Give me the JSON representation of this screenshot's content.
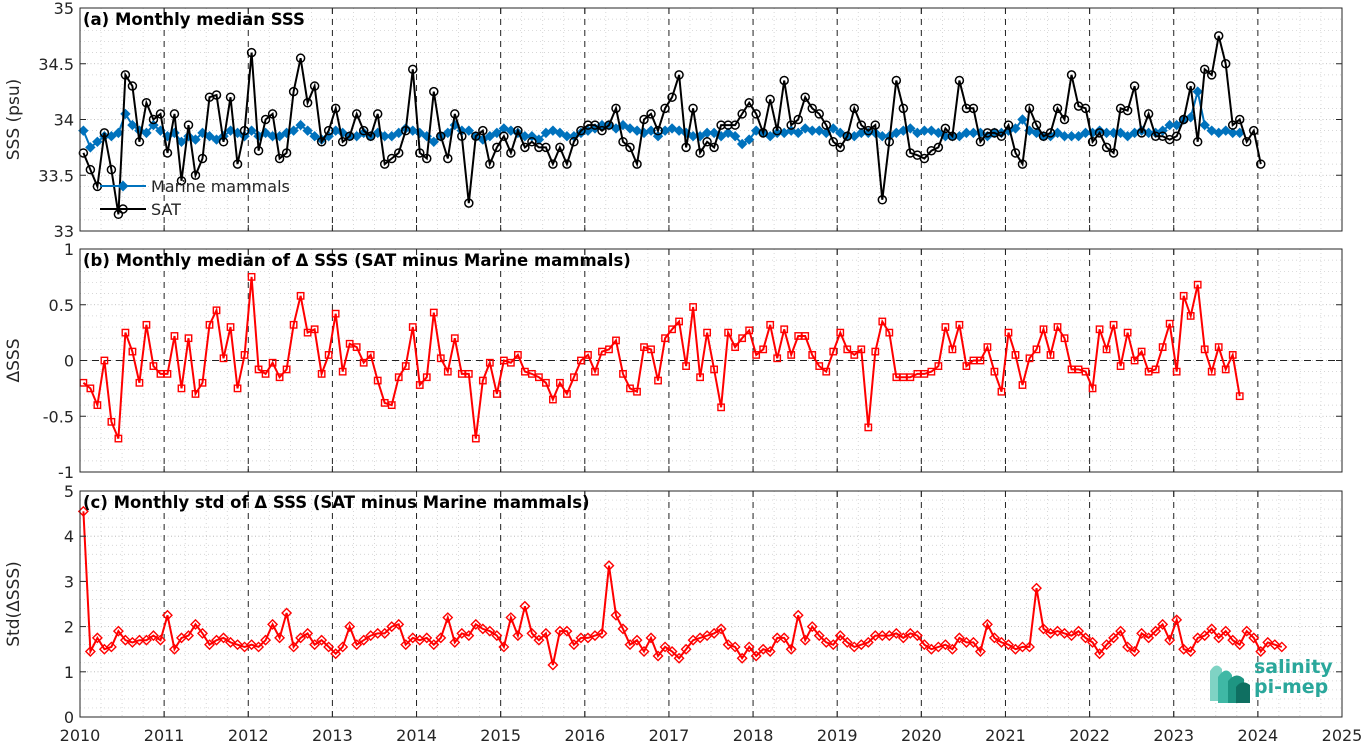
{
  "logo": {
    "line1": "salinity",
    "line2": "pi-mep"
  },
  "x_ticks": [
    "2010",
    "2011",
    "2012",
    "2013",
    "2014",
    "2015",
    "2016",
    "2017",
    "2018",
    "2019",
    "2020",
    "2021",
    "2022",
    "2023",
    "2024",
    "2025"
  ],
  "colors": {
    "marine": "#0072bd",
    "sat": "#000000",
    "delta": "#ff0000",
    "grid": "#bdbdbd"
  },
  "chart_data": [
    {
      "type": "line",
      "title": "(a) Monthly median SSS",
      "ylabel": "SSS (psu)",
      "ylim": [
        33,
        35
      ],
      "yticks": [
        "33",
        "33.5",
        "34",
        "34.5",
        "35"
      ],
      "xlim": [
        2010,
        2025
      ],
      "grid": true,
      "legend_position": "lower-left",
      "series": [
        {
          "name": "Marine mammals",
          "marker": "diamond",
          "x_start": 2010.04,
          "x_step": 0.0833,
          "values": [
            33.9,
            33.75,
            33.8,
            33.85,
            33.85,
            33.88,
            34.05,
            33.95,
            33.9,
            33.88,
            33.95,
            33.9,
            33.85,
            33.88,
            33.8,
            33.85,
            33.82,
            33.88,
            33.85,
            33.82,
            33.85,
            33.9,
            33.88,
            33.85,
            33.9,
            33.85,
            33.88,
            33.85,
            33.85,
            33.88,
            33.9,
            33.95,
            33.9,
            33.85,
            33.82,
            33.85,
            33.9,
            33.88,
            33.85,
            33.85,
            33.88,
            33.85,
            33.88,
            33.85,
            33.85,
            33.88,
            33.92,
            33.9,
            33.88,
            33.85,
            33.8,
            33.85,
            33.88,
            33.95,
            33.9,
            33.9,
            33.85,
            33.82,
            33.85,
            33.88,
            33.92,
            33.9,
            33.88,
            33.85,
            33.85,
            33.82,
            33.88,
            33.9,
            33.88,
            33.85,
            33.85,
            33.88,
            33.9,
            33.92,
            33.95,
            33.95,
            33.92,
            33.95,
            33.92,
            33.9,
            33.88,
            33.9,
            33.85,
            33.9,
            33.92,
            33.9,
            33.88,
            33.85,
            33.85,
            33.88,
            33.88,
            33.85,
            33.88,
            33.85,
            33.78,
            33.82,
            33.9,
            33.88,
            33.85,
            33.88,
            33.88,
            33.9,
            33.88,
            33.92,
            33.9,
            33.9,
            33.88,
            33.92,
            33.88,
            33.85,
            33.85,
            33.88,
            33.88,
            33.88,
            33.85,
            33.85,
            33.88,
            33.9,
            33.92,
            33.88,
            33.9,
            33.9,
            33.88,
            33.85,
            33.85,
            33.85,
            33.88,
            33.88,
            33.88,
            33.85,
            33.88,
            33.88,
            33.9,
            33.92,
            34.0,
            33.9,
            33.88,
            33.85,
            33.85,
            33.88,
            33.85,
            33.85,
            33.85,
            33.88,
            33.88,
            33.9,
            33.88,
            33.88,
            33.88,
            33.85,
            33.88,
            33.9,
            33.88,
            33.88,
            33.9,
            33.95,
            33.95,
            34.0,
            34.02,
            34.25,
            33.95,
            33.9,
            33.88,
            33.9,
            33.88,
            33.88
          ],
          "color": "#0072bd"
        },
        {
          "name": "SAT",
          "marker": "circle",
          "x_start": 2010.04,
          "x_step": 0.0833,
          "values": [
            33.7,
            33.55,
            33.4,
            33.88,
            33.55,
            33.15,
            34.4,
            34.3,
            33.8,
            34.15,
            34.0,
            34.05,
            33.7,
            34.05,
            33.45,
            33.95,
            33.5,
            33.65,
            34.2,
            34.22,
            33.8,
            34.2,
            33.6,
            33.9,
            34.6,
            33.72,
            34.0,
            34.05,
            33.65,
            33.7,
            34.25,
            34.55,
            34.15,
            34.3,
            33.8,
            33.9,
            34.1,
            33.8,
            33.85,
            34.05,
            33.9,
            33.85,
            34.05,
            33.6,
            33.65,
            33.7,
            33.9,
            34.45,
            33.7,
            33.65,
            34.25,
            33.85,
            33.65,
            34.05,
            33.85,
            33.25,
            33.85,
            33.9,
            33.6,
            33.75,
            33.85,
            33.7,
            33.9,
            33.75,
            33.8,
            33.75,
            33.75,
            33.6,
            33.75,
            33.6,
            33.8,
            33.9,
            33.95,
            33.95,
            33.9,
            33.95,
            34.1,
            33.8,
            33.75,
            33.6,
            34.0,
            34.05,
            33.9,
            34.1,
            34.2,
            34.4,
            33.75,
            34.1,
            33.7,
            33.8,
            33.75,
            33.95,
            33.95,
            33.95,
            34.05,
            34.15,
            34.05,
            33.88,
            34.18,
            33.9,
            34.35,
            33.95,
            34.0,
            34.2,
            34.1,
            34.05,
            33.95,
            33.8,
            33.75,
            33.85,
            34.1,
            33.95,
            33.9,
            33.95,
            33.28,
            33.8,
            34.35,
            34.1,
            33.7,
            33.68,
            33.65,
            33.72,
            33.75,
            33.92,
            33.85,
            34.35,
            34.1,
            34.1,
            33.8,
            33.88,
            33.88,
            33.85,
            33.95,
            33.7,
            33.6,
            34.1,
            33.95,
            33.85,
            33.88,
            34.1,
            34.0,
            34.4,
            34.12,
            34.1,
            33.8,
            33.88,
            33.75,
            33.7,
            34.1,
            34.08,
            34.3,
            33.88,
            34.05,
            33.85,
            33.85,
            33.82,
            33.85,
            34.0,
            34.3,
            33.8,
            34.45,
            34.4,
            34.75,
            34.5,
            33.95,
            34.0,
            33.8,
            33.9,
            33.6
          ],
          "color": "#000000"
        }
      ]
    },
    {
      "type": "line",
      "title": "(b) Monthly median of Δ SSS (SAT minus Marine mammals)",
      "ylabel": "ΔSSS",
      "ylim": [
        -1,
        1
      ],
      "yticks": [
        "-1",
        "-0.5",
        "0",
        "0.5",
        "1"
      ],
      "xlim": [
        2010,
        2025
      ],
      "grid": true,
      "reference_line": 0,
      "series": [
        {
          "marker": "square",
          "x_start": 2010.04,
          "x_step": 0.0833,
          "values": [
            -0.2,
            -0.25,
            -0.4,
            0.0,
            -0.55,
            -0.7,
            0.25,
            0.08,
            -0.2,
            0.32,
            -0.05,
            -0.12,
            -0.12,
            0.22,
            -0.25,
            0.2,
            -0.3,
            -0.2,
            0.32,
            0.45,
            0.02,
            0.3,
            -0.25,
            0.05,
            0.75,
            -0.08,
            -0.12,
            -0.02,
            -0.15,
            -0.08,
            0.32,
            0.58,
            0.25,
            0.28,
            -0.12,
            0.05,
            0.42,
            -0.1,
            0.15,
            0.12,
            -0.02,
            0.05,
            -0.18,
            -0.38,
            -0.4,
            -0.15,
            -0.05,
            0.3,
            -0.22,
            -0.15,
            0.43,
            0.02,
            -0.1,
            0.2,
            -0.12,
            -0.12,
            -0.7,
            -0.18,
            -0.02,
            -0.3,
            0.0,
            -0.02,
            0.05,
            -0.1,
            -0.12,
            -0.15,
            -0.2,
            -0.35,
            -0.2,
            -0.3,
            -0.15,
            0.0,
            0.05,
            -0.1,
            0.08,
            0.1,
            0.18,
            -0.12,
            -0.25,
            -0.28,
            0.12,
            0.1,
            -0.18,
            0.2,
            0.28,
            0.35,
            -0.05,
            0.48,
            -0.15,
            0.25,
            -0.08,
            -0.42,
            0.25,
            0.12,
            0.2,
            0.27,
            0.05,
            0.1,
            0.32,
            0.02,
            0.28,
            0.05,
            0.22,
            0.22,
            0.05,
            -0.05,
            -0.1,
            0.08,
            0.25,
            0.1,
            0.05,
            0.1,
            -0.6,
            0.08,
            0.35,
            0.25,
            -0.15,
            -0.15,
            -0.15,
            -0.12,
            -0.12,
            -0.1,
            -0.05,
            0.3,
            0.1,
            0.32,
            -0.05,
            0.0,
            0.0,
            0.12,
            -0.1,
            -0.28,
            0.25,
            0.05,
            -0.22,
            0.02,
            0.1,
            0.28,
            0.05,
            0.3,
            0.2,
            -0.08,
            -0.08,
            -0.1,
            -0.25,
            0.28,
            0.1,
            0.32,
            -0.05,
            0.25,
            0.0,
            0.08,
            -0.1,
            -0.08,
            0.12,
            0.33,
            -0.1,
            0.58,
            0.4,
            0.68,
            0.1,
            -0.1,
            0.12,
            -0.08,
            0.05,
            -0.32
          ],
          "color": "#ff0000"
        }
      ]
    },
    {
      "type": "line",
      "title": "(c) Monthly std of Δ SSS (SAT minus Marine mammals)",
      "ylabel": "Std(ΔSSS)",
      "ylim": [
        0,
        5
      ],
      "yticks": [
        "0",
        "1",
        "2",
        "3",
        "4",
        "5"
      ],
      "xlim": [
        2010,
        2025
      ],
      "grid": true,
      "series": [
        {
          "marker": "diamond",
          "x_start": 2010.04,
          "x_step": 0.0833,
          "values": [
            4.55,
            1.45,
            1.75,
            1.5,
            1.55,
            1.9,
            1.7,
            1.65,
            1.7,
            1.7,
            1.8,
            1.7,
            2.25,
            1.5,
            1.75,
            1.8,
            2.05,
            1.85,
            1.6,
            1.7,
            1.75,
            1.65,
            1.6,
            1.55,
            1.6,
            1.55,
            1.7,
            2.05,
            1.75,
            2.3,
            1.55,
            1.75,
            1.85,
            1.6,
            1.7,
            1.55,
            1.4,
            1.55,
            2.0,
            1.6,
            1.7,
            1.8,
            1.85,
            1.85,
            2.0,
            2.05,
            1.6,
            1.75,
            1.7,
            1.75,
            1.6,
            1.75,
            2.2,
            1.65,
            1.85,
            1.8,
            2.05,
            1.95,
            1.9,
            1.8,
            1.55,
            2.2,
            1.8,
            2.45,
            1.85,
            1.7,
            1.85,
            1.15,
            1.9,
            1.9,
            1.6,
            1.75,
            1.75,
            1.8,
            1.85,
            3.35,
            2.25,
            1.95,
            1.6,
            1.7,
            1.45,
            1.75,
            1.35,
            1.55,
            1.45,
            1.3,
            1.5,
            1.7,
            1.75,
            1.8,
            1.85,
            1.95,
            1.6,
            1.55,
            1.3,
            1.55,
            1.35,
            1.5,
            1.45,
            1.75,
            1.75,
            1.5,
            2.25,
            1.7,
            2.0,
            1.8,
            1.65,
            1.6,
            1.8,
            1.65,
            1.55,
            1.6,
            1.65,
            1.8,
            1.8,
            1.8,
            1.85,
            1.75,
            1.85,
            1.8,
            1.6,
            1.5,
            1.55,
            1.6,
            1.5,
            1.75,
            1.65,
            1.65,
            1.45,
            2.05,
            1.75,
            1.65,
            1.6,
            1.5,
            1.55,
            1.55,
            2.85,
            1.95,
            1.85,
            1.9,
            1.85,
            1.8,
            1.9,
            1.75,
            1.65,
            1.4,
            1.6,
            1.75,
            1.9,
            1.55,
            1.45,
            1.85,
            1.75,
            1.9,
            2.05,
            1.7,
            2.15,
            1.5,
            1.45,
            1.75,
            1.8,
            1.95,
            1.75,
            1.9,
            1.7,
            1.6,
            1.9,
            1.75,
            1.45,
            1.65,
            1.6,
            1.55
          ],
          "color": "#ff0000"
        }
      ]
    }
  ]
}
